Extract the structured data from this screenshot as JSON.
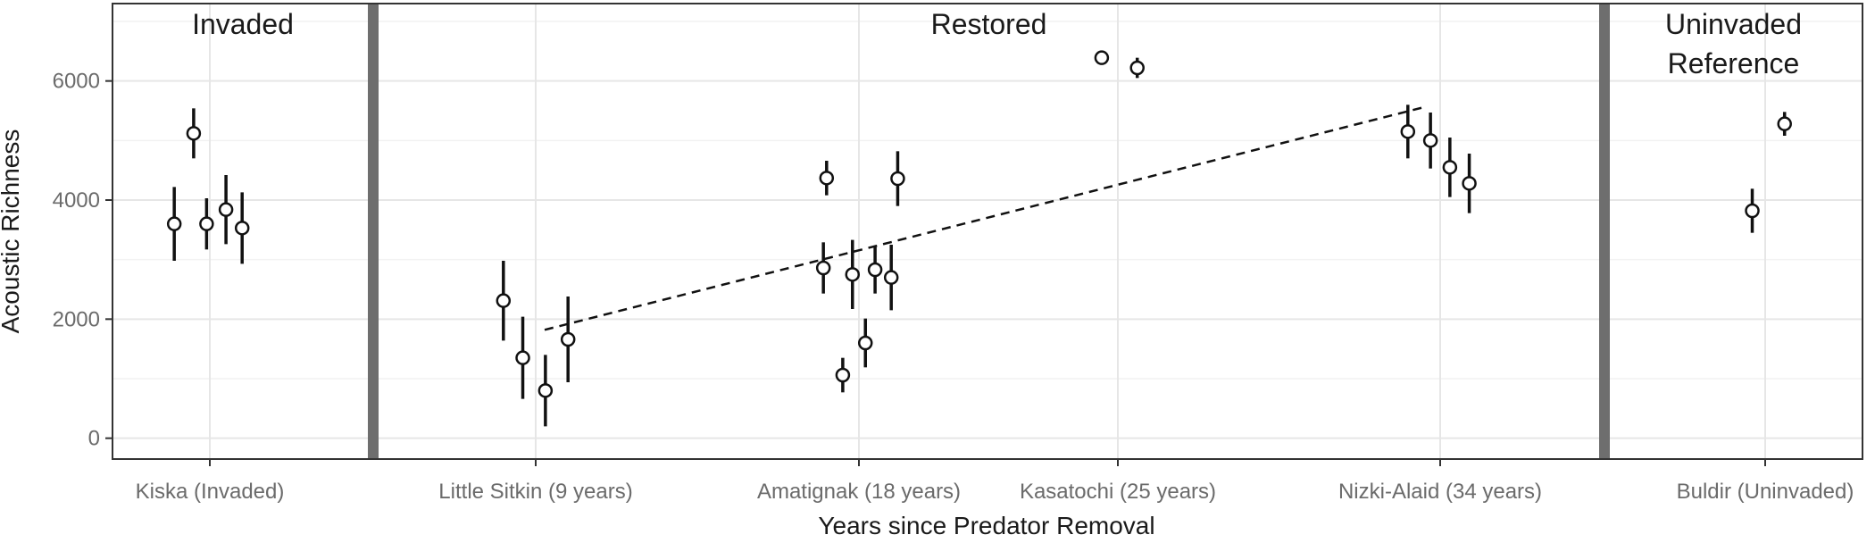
{
  "chart_data": {
    "type": "scatter",
    "title": "",
    "xlabel": "Years since Predator Removal",
    "ylabel": "Acoustic Richness",
    "ylim": [
      -350,
      7300
    ],
    "yticks": [
      0,
      2000,
      4000,
      6000
    ],
    "grid": true,
    "categories": [
      "Kiska (Invaded)",
      "Little Sitkin (9 years)",
      "Amatignak (18 years)",
      "Kasatochi (25 years)",
      "Nizki-Alaid (34 years)",
      "Buldir (Uninvaded)"
    ],
    "panels": [
      {
        "label_lines": [
          "Invaded"
        ]
      },
      {
        "label_lines": [
          "Restored"
        ]
      },
      {
        "label_lines": [
          "Uninvaded",
          "Reference"
        ]
      }
    ],
    "points": [
      {
        "category": 0,
        "offset": -0.11,
        "y": 3600,
        "low": 2980,
        "high": 4220
      },
      {
        "category": 0,
        "offset": -0.05,
        "y": 5120,
        "low": 4700,
        "high": 5540
      },
      {
        "category": 0,
        "offset": -0.01,
        "y": 3600,
        "low": 3170,
        "high": 4030
      },
      {
        "category": 0,
        "offset": 0.05,
        "y": 3840,
        "low": 3260,
        "high": 4420
      },
      {
        "category": 0,
        "offset": 0.1,
        "y": 3530,
        "low": 2930,
        "high": 4130
      },
      {
        "category": 1,
        "offset": -0.1,
        "y": 2310,
        "low": 1640,
        "high": 2980
      },
      {
        "category": 1,
        "offset": -0.04,
        "y": 1350,
        "low": 660,
        "high": 2040
      },
      {
        "category": 1,
        "offset": 0.03,
        "y": 800,
        "low": 200,
        "high": 1400
      },
      {
        "category": 1,
        "offset": 0.1,
        "y": 1660,
        "low": 940,
        "high": 2380
      },
      {
        "category": 2,
        "offset": -0.11,
        "y": 2860,
        "low": 2430,
        "high": 3290
      },
      {
        "category": 2,
        "offset": -0.1,
        "y": 4370,
        "low": 4080,
        "high": 4660
      },
      {
        "category": 2,
        "offset": -0.05,
        "y": 1060,
        "low": 770,
        "high": 1350
      },
      {
        "category": 2,
        "offset": -0.02,
        "y": 2750,
        "low": 2170,
        "high": 3330
      },
      {
        "category": 2,
        "offset": 0.02,
        "y": 1600,
        "low": 1190,
        "high": 2010
      },
      {
        "category": 2,
        "offset": 0.05,
        "y": 2830,
        "low": 2430,
        "high": 3230
      },
      {
        "category": 2,
        "offset": 0.1,
        "y": 2700,
        "low": 2150,
        "high": 3250
      },
      {
        "category": 2,
        "offset": 0.12,
        "y": 4360,
        "low": 3900,
        "high": 4820
      },
      {
        "category": 3,
        "offset": -0.05,
        "y": 6390,
        "low": 6320,
        "high": 6460
      },
      {
        "category": 3,
        "offset": 0.06,
        "y": 6220,
        "low": 6050,
        "high": 6390
      },
      {
        "category": 4,
        "offset": -0.1,
        "y": 5150,
        "low": 4700,
        "high": 5600
      },
      {
        "category": 4,
        "offset": -0.03,
        "y": 5000,
        "low": 4530,
        "high": 5470
      },
      {
        "category": 4,
        "offset": 0.03,
        "y": 4550,
        "low": 4050,
        "high": 5050
      },
      {
        "category": 4,
        "offset": 0.09,
        "y": 4280,
        "low": 3780,
        "high": 4780
      },
      {
        "category": 5,
        "offset": -0.04,
        "y": 3820,
        "low": 3450,
        "high": 4190
      },
      {
        "category": 5,
        "offset": 0.06,
        "y": 5280,
        "low": 5080,
        "high": 5480
      }
    ],
    "trend_line": {
      "x_from": 1,
      "x_to": 4,
      "y_from": 1820,
      "y_to": 5560
    }
  }
}
